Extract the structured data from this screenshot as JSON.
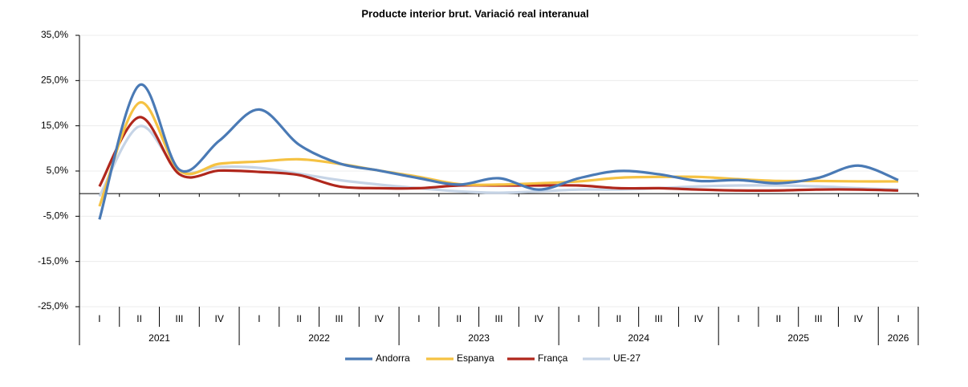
{
  "chart_data": {
    "type": "line",
    "title": "Producte interior brut. Variació real interanual",
    "groups": [
      {
        "label": "2021",
        "categories": [
          "I",
          "II",
          "III",
          "IV"
        ]
      },
      {
        "label": "2022",
        "categories": [
          "I",
          "II",
          "III",
          "IV"
        ]
      },
      {
        "label": "2023",
        "categories": [
          "I",
          "II",
          "III",
          "IV"
        ]
      },
      {
        "label": "2024",
        "categories": [
          "I",
          "II",
          "III",
          "IV"
        ]
      },
      {
        "label": "2025",
        "categories": [
          "I",
          "II",
          "III",
          "IV"
        ]
      },
      {
        "label": "2026",
        "categories": [
          "I"
        ]
      }
    ],
    "series": [
      {
        "name": "Andorra",
        "color": "#4a7ab5",
        "values": [
          -5.7,
          24.0,
          5.3,
          11.7,
          18.6,
          10.8,
          6.7,
          5.1,
          3.4,
          2.0,
          3.4,
          0.9,
          3.4,
          5.0,
          4.3,
          2.8,
          3.0,
          2.3,
          3.5,
          6.2,
          3.0
        ]
      },
      {
        "name": "Espanya",
        "color": "#f5c243",
        "values": [
          -2.8,
          20.1,
          5.1,
          6.6,
          7.1,
          7.6,
          6.6,
          5.1,
          3.7,
          2.1,
          2.0,
          2.3,
          2.7,
          3.5,
          3.7,
          3.7,
          3.2,
          2.8,
          2.8,
          2.7,
          2.7
        ]
      },
      {
        "name": "França",
        "color": "#b0271c",
        "values": [
          1.6,
          16.9,
          4.3,
          5.1,
          4.8,
          4.1,
          1.6,
          1.2,
          1.2,
          1.8,
          1.8,
          1.8,
          1.8,
          1.2,
          1.2,
          0.9,
          0.7,
          0.7,
          0.9,
          0.9,
          0.7
        ]
      },
      {
        "name": "UE-27",
        "color": "#c6d4e6",
        "values": [
          -0.6,
          14.9,
          5.1,
          5.9,
          5.7,
          4.4,
          3.0,
          2.0,
          1.2,
          0.5,
          0.2,
          0.5,
          0.9,
          0.9,
          1.2,
          1.6,
          1.8,
          1.8,
          1.6,
          1.2,
          0.9
        ]
      }
    ],
    "ylim": [
      -25,
      35
    ],
    "yticks": [
      {
        "value": -25,
        "label": "-25,0%"
      },
      {
        "value": -15,
        "label": "-15,0%"
      },
      {
        "value": -5,
        "label": "-5,0%"
      },
      {
        "value": 5,
        "label": "5,0%"
      },
      {
        "value": 15,
        "label": "15,0%"
      },
      {
        "value": 25,
        "label": "25,0%"
      },
      {
        "value": 35,
        "label": "35,0%"
      }
    ],
    "grid": true,
    "legend": "bottom"
  }
}
